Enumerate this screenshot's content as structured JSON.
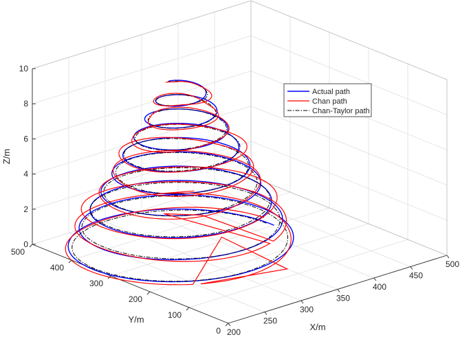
{
  "chart_data": {
    "type": "line3d",
    "xlabel": "X/m",
    "ylabel": "Y/m",
    "zlabel": "Z/m",
    "xlim": [
      200,
      500
    ],
    "ylim": [
      0,
      500
    ],
    "zlim": [
      0,
      10
    ],
    "x_ticks": [
      "200",
      "250",
      "300",
      "350",
      "400",
      "450",
      "500"
    ],
    "y_ticks": [
      "0",
      "100",
      "200",
      "300",
      "400",
      "500"
    ],
    "z_ticks": [
      "0",
      "2",
      "4",
      "6",
      "8",
      "10"
    ],
    "grid": true,
    "legend_position": "upper-right inside",
    "helix": {
      "center_x": 300,
      "center_y": 300,
      "z_start": 0,
      "z_end": 9.6,
      "turns": 9.3,
      "radius_start": 200,
      "radius_end": 30
    },
    "series": [
      {
        "name": "Actual path",
        "color": "#0000ff",
        "style": "solid"
      },
      {
        "name": "Chan path",
        "color": "#ff0000",
        "style": "solid"
      },
      {
        "name": "Chan-Taylor path",
        "color": "#000000",
        "style": "dashdot"
      }
    ],
    "chan_outliers": [
      {
        "x": 320,
        "y": 240,
        "z": 1.2
      },
      {
        "x": 320,
        "y": 310,
        "z": 3.2
      },
      {
        "x": 300,
        "y": 350,
        "z": 1.8
      },
      {
        "x": 340,
        "y": 110,
        "z": 0.3
      },
      {
        "x": 320,
        "y": 290,
        "z": 2.0
      }
    ]
  }
}
